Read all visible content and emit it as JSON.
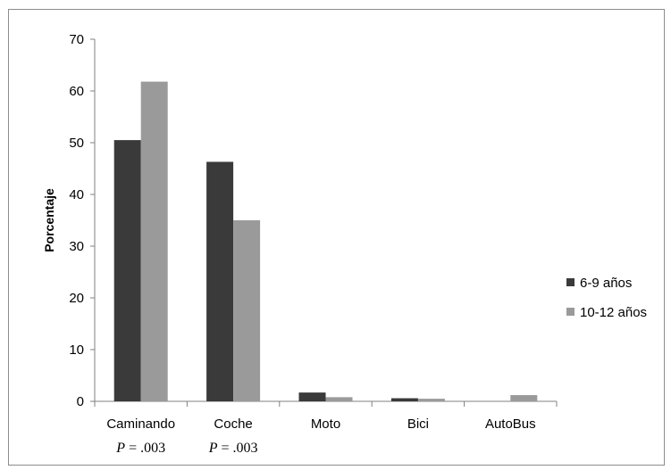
{
  "chart_data": {
    "type": "bar",
    "title": "",
    "xlabel": "",
    "ylabel": "Porcentaje",
    "ylim": [
      0,
      70
    ],
    "yticks": [
      0,
      10,
      20,
      30,
      40,
      50,
      60,
      70
    ],
    "grid": false,
    "legend_position": "right",
    "categories": [
      "Caminando",
      "Coche",
      "Moto",
      "Bici",
      "AutoBus"
    ],
    "annotations": [
      {
        "category": "Caminando",
        "text": "P = .003"
      },
      {
        "category": "Coche",
        "text": "P = .003"
      }
    ],
    "series": [
      {
        "name": "6-9 años",
        "color": "#3a3a3a",
        "values": [
          50.5,
          46.3,
          1.7,
          0.6,
          0.0
        ]
      },
      {
        "name": "10-12 años",
        "color": "#9a9a9a",
        "values": [
          61.8,
          35.0,
          0.8,
          0.5,
          1.2
        ]
      }
    ]
  }
}
